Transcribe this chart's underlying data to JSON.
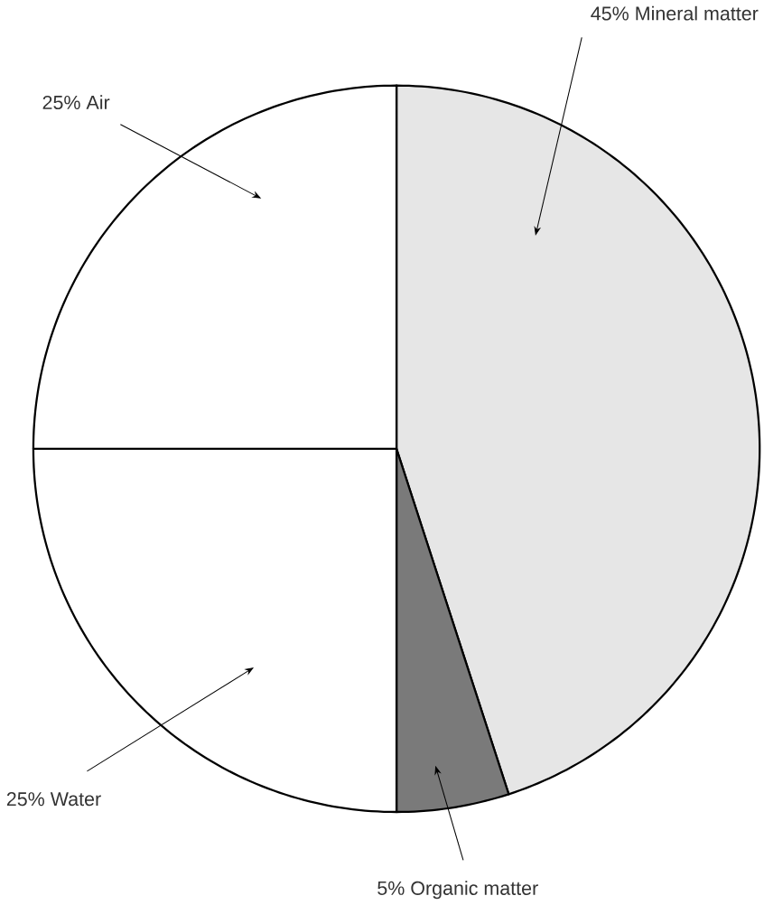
{
  "chart_data": {
    "type": "pie",
    "categories": [
      "Mineral matter",
      "Organic matter",
      "Water",
      "Air"
    ],
    "values": [
      45,
      5,
      25,
      25
    ],
    "value_labels": [
      "45%",
      "5%",
      "25%",
      "25%"
    ],
    "colors": [
      "#e6e6e6",
      "#7a7a7a",
      "#ffffff",
      "#ffffff"
    ]
  }
}
